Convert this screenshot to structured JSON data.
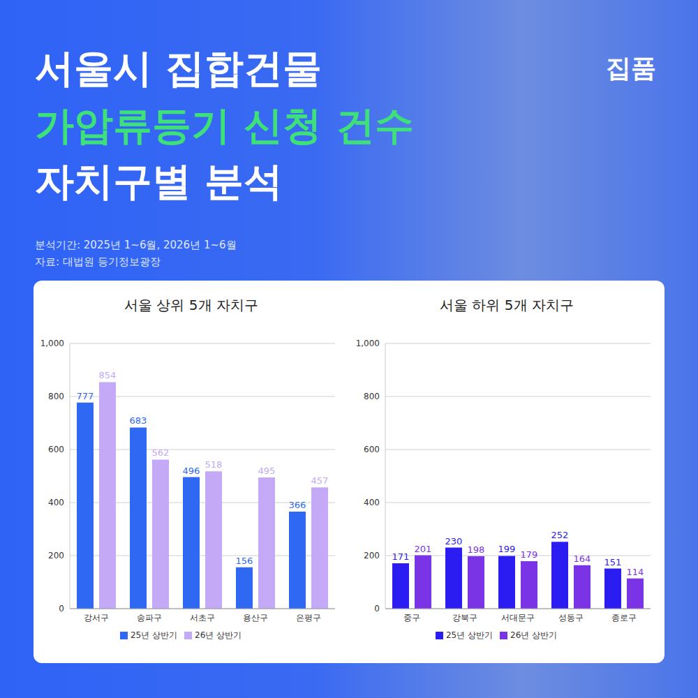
{
  "header": {
    "title": [
      "서울시 집합건물",
      "가압류등기 신청 건수",
      "자치구별 분석"
    ],
    "brand": "집품",
    "notes": [
      "분석기간: 2025년 1~6월, 2026년 1~6월",
      "자료: 대법원 등기정보광장"
    ]
  },
  "chart_data": [
    {
      "type": "bar",
      "title": "서울 상위 5개 자치구",
      "categories": [
        "강서구",
        "송파구",
        "서초구",
        "용산구",
        "은평구"
      ],
      "series": [
        {
          "name": "25년 상반기",
          "color": "#2f68f2",
          "values": [
            777,
            683,
            496,
            156,
            366
          ]
        },
        {
          "name": "26년 상반기",
          "color": "#c3a9f6",
          "values": [
            854,
            562,
            518,
            495,
            457
          ]
        }
      ],
      "ylim": [
        0,
        1000
      ],
      "yticks": [
        0,
        200,
        400,
        600,
        800,
        {
          "value": 1000,
          "label": "1,000"
        }
      ],
      "grid": true,
      "data_labels": true,
      "legend": "bottom"
    },
    {
      "type": "bar",
      "title": "서울 하위 5개 자치구",
      "categories": [
        "중구",
        "강북구",
        "서대문구",
        "성동구",
        "종로구"
      ],
      "series": [
        {
          "name": "25년 상반기",
          "color": "#2b1cf2",
          "values": [
            171,
            230,
            199,
            252,
            151
          ]
        },
        {
          "name": "26년 상반기",
          "color": "#7a34e6",
          "values": [
            201,
            198,
            179,
            164,
            114
          ]
        }
      ],
      "ylim": [
        0,
        1000
      ],
      "yticks": [
        0,
        200,
        400,
        600,
        800,
        {
          "value": 1000,
          "label": "1,000"
        }
      ],
      "grid": true,
      "data_labels": true,
      "legend": "bottom"
    }
  ]
}
